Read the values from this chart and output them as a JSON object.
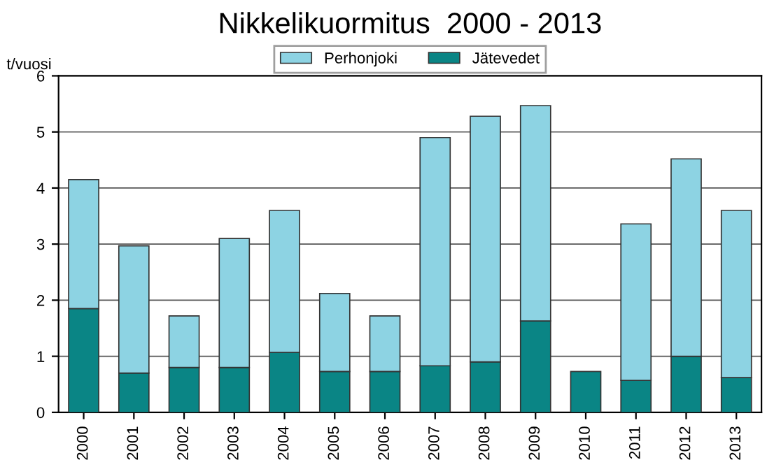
{
  "chart_data": {
    "type": "bar",
    "title": "Nikkelikuormitus  2000 - 2013",
    "ylabel": "t/vuosi",
    "categories": [
      "2000",
      "2001",
      "2002",
      "2003",
      "2004",
      "2005",
      "2006",
      "2007",
      "2008",
      "2009",
      "2010",
      "2011",
      "2012",
      "2013"
    ],
    "stacked": true,
    "series": [
      {
        "name": "Jätevedet",
        "color": "#0a8585",
        "values": [
          1.85,
          0.7,
          0.8,
          0.8,
          1.07,
          0.73,
          0.73,
          0.83,
          0.9,
          1.63,
          0.73,
          0.57,
          1.0,
          0.62
        ]
      },
      {
        "name": "Perhonjoki",
        "color": "#8dd3e3",
        "values": [
          2.3,
          2.27,
          0.92,
          2.3,
          2.53,
          1.39,
          0.99,
          4.07,
          4.38,
          3.84,
          null,
          2.79,
          3.52,
          2.98
        ]
      }
    ],
    "ylim": [
      0,
      6
    ],
    "yticks": [
      0,
      1,
      2,
      3,
      4,
      5,
      6
    ],
    "grid": "y",
    "legend": "top"
  }
}
